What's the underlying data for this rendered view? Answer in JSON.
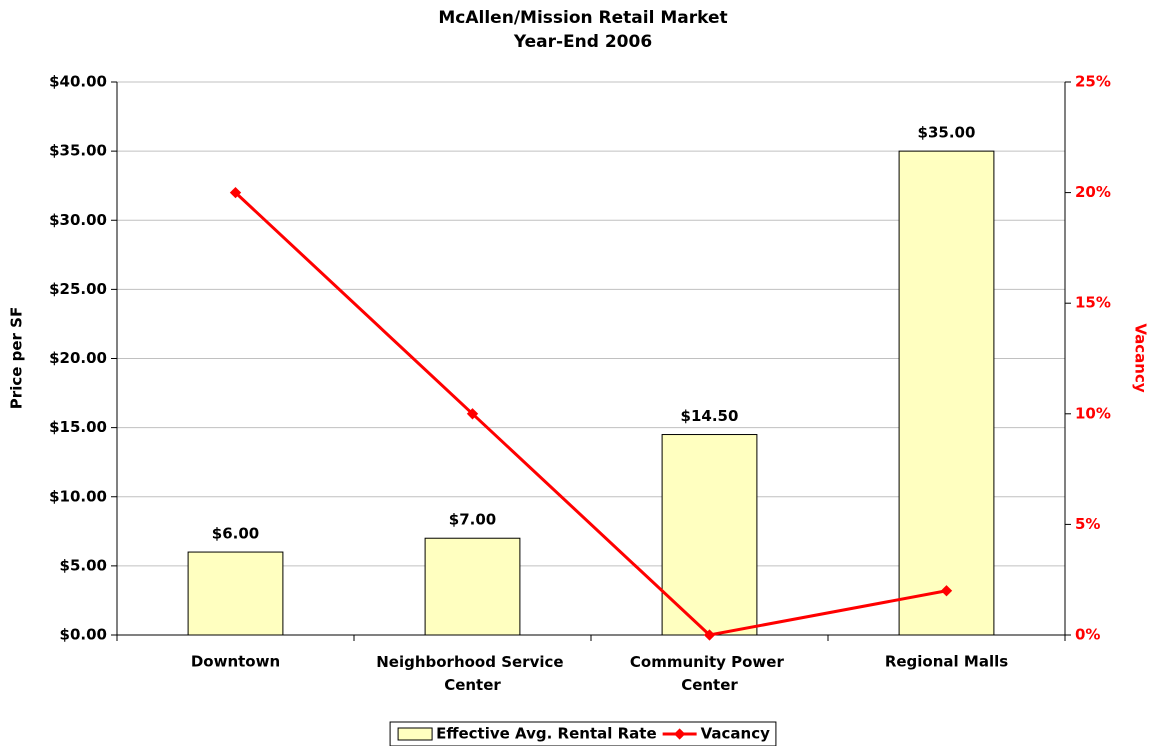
{
  "chart_data": {
    "type": "bar-line",
    "title": "McAllen/Mission Retail Market",
    "subtitle": "Year-End 2006",
    "ylabel": "Price per SF",
    "y2label": "Vacancy",
    "categories": [
      "Downtown",
      "Neighborhood Service Center",
      "Community Power Center",
      "Regional Malls"
    ],
    "series": [
      {
        "name": "Effective Avg. Rental Rate",
        "type": "bar",
        "color": "#ffffc0",
        "values": [
          6,
          7,
          14.5,
          35
        ],
        "value_labels": [
          "$6.00",
          "$7.00",
          "$14.50",
          "$35.00"
        ]
      },
      {
        "name": "Vacancy",
        "type": "line",
        "color": "#ff0000",
        "axis": "y2",
        "values": [
          20,
          10,
          0,
          2
        ]
      }
    ],
    "ylim": [
      0,
      40
    ],
    "yticks": [
      {
        "value": 0,
        "label": "$0.00"
      },
      {
        "value": 5,
        "label": "$5.00"
      },
      {
        "value": 10,
        "label": "$10.00"
      },
      {
        "value": 15,
        "label": "$15.00"
      },
      {
        "value": 20,
        "label": "$20.00"
      },
      {
        "value": 25,
        "label": "$25.00"
      },
      {
        "value": 30,
        "label": "$30.00"
      },
      {
        "value": 35,
        "label": "$35.00"
      },
      {
        "value": 40,
        "label": "$40.00"
      }
    ],
    "y2lim": [
      0,
      25
    ],
    "y2ticks": [
      {
        "value": 0,
        "label": "0%"
      },
      {
        "value": 5,
        "label": "5%"
      },
      {
        "value": 10,
        "label": "10%"
      },
      {
        "value": 15,
        "label": "15%"
      },
      {
        "value": 20,
        "label": "20%"
      },
      {
        "value": 25,
        "label": "25%"
      }
    ],
    "y2color": "#ff0000",
    "grid": true,
    "legend": "bottom"
  }
}
